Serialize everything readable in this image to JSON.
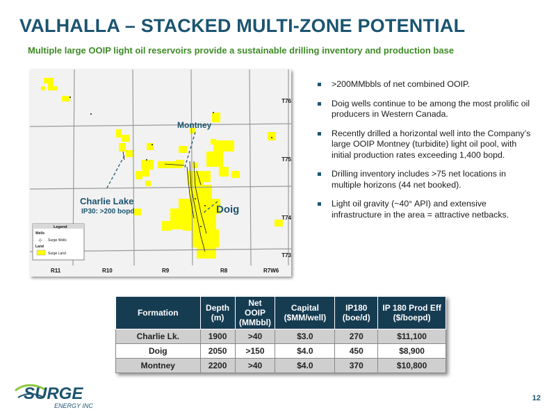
{
  "header": {
    "title": "VALHALLA – STACKED MULTI-ZONE POTENTIAL",
    "subtitle": "Multiple large OOIP light oil reservoirs provide a sustainable drilling inventory and production base"
  },
  "map": {
    "labels": {
      "montney": "Montney",
      "charlie_lake": "Charlie Lake",
      "charlie_ip": "IP30: >200 bopd",
      "doig": "Doig"
    },
    "townships": [
      "T76",
      "T75",
      "T74",
      "T73"
    ],
    "ranges": [
      "R11",
      "R10",
      "R9",
      "R8",
      "R7W6"
    ],
    "legend": {
      "title": "Legend",
      "wells_heading": "Wells",
      "wells_item": "Surge Wells",
      "land_heading": "Land",
      "land_item": "Surge Land"
    },
    "colors": {
      "land": "#ffff00",
      "label": "#1b5470",
      "grid": "#9a9a9a",
      "background": "#f2f2f2"
    }
  },
  "bullets": [
    ">200MMbbls of net combined OOIP.",
    "Doig wells continue to be among the most prolific oil producers in Western Canada.",
    "Recently drilled a horizontal well into the Company’s large OOIP Montney (turbidite) light oil pool, with initial production rates exceeding 1,400 bopd.",
    "Drilling inventory includes >75 net locations in multiple horizons (44 net booked).",
    "Light oil gravity (~40° API) and extensive infrastructure in the area = attractive netbacks."
  ],
  "table": {
    "headers": [
      "Formation",
      "Depth (m)",
      "Net OOIP (MMbbl)",
      "Capital ($MM/well)",
      "IP180 (boe/d)",
      "IP 180 Prod Eff ($/boepd)"
    ],
    "rows": [
      [
        "Charlie Lk.",
        "1900",
        ">40",
        "$3.0",
        "270",
        "$11,100"
      ],
      [
        "Doig",
        "2050",
        ">150",
        "$4.0",
        "450",
        "$8,900"
      ],
      [
        "Montney",
        "2200",
        ">40",
        "$4.0",
        "370",
        "$10,800"
      ]
    ]
  },
  "footer": {
    "logo_text": "SURGE",
    "logo_subtext": "ENERGY INC",
    "page_number": "12"
  }
}
